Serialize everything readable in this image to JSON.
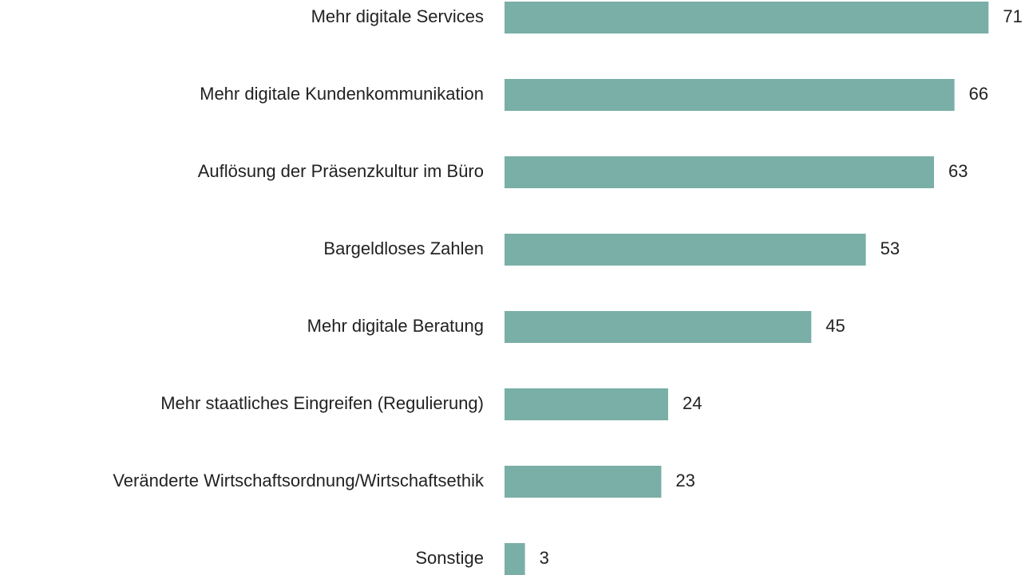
{
  "chart_data": {
    "type": "bar",
    "orientation": "horizontal",
    "color": "#79afa7",
    "categories": [
      "Mehr digitale Services",
      "Mehr digitale Kundenkommunikation",
      "Auflösung der Präsenzkultur im Büro",
      "Bargeldloses Zahlen",
      "Mehr digitale Beratung",
      "Mehr staatliches Eingreifen (Regulierung)",
      "Veränderte Wirtschaftsordnung/Wirtschaftsethik",
      "Sonstige"
    ],
    "values": [
      71,
      66,
      63,
      53,
      45,
      24,
      23,
      3
    ]
  }
}
